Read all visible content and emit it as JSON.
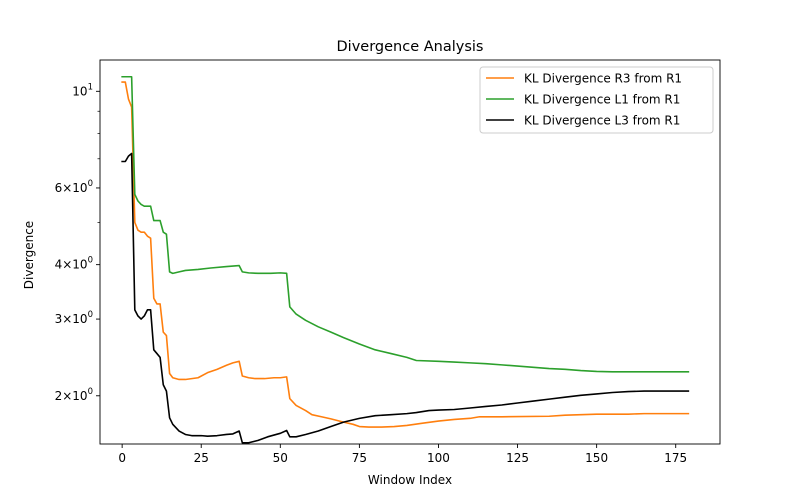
{
  "chart_data": {
    "type": "line",
    "title": "Divergence Analysis",
    "xlabel": "Window Index",
    "ylabel": "Divergence",
    "xlim": [
      -7,
      189
    ],
    "ylim": [
      1.55,
      11.8
    ],
    "yscale": "log",
    "x_ticks": [
      0,
      25,
      50,
      75,
      100,
      125,
      150,
      175
    ],
    "y_ticks": [
      {
        "value": 10,
        "label": "10^1"
      },
      {
        "value": 6,
        "label": "6x10^0"
      },
      {
        "value": 4,
        "label": "4x10^0"
      },
      {
        "value": 3,
        "label": "3x10^0"
      },
      {
        "value": 2,
        "label": "2x10^0"
      }
    ],
    "y_minor_ticks": [
      5,
      7,
      8,
      9
    ],
    "grid": false,
    "legend_position": "upper right",
    "series": [
      {
        "name": "KL Divergence R3 from R1",
        "color": "#ff7f0e",
        "points": [
          [
            0,
            10.5
          ],
          [
            1,
            10.5
          ],
          [
            2,
            9.6
          ],
          [
            3,
            9.2
          ],
          [
            4,
            5.0
          ],
          [
            5,
            4.8
          ],
          [
            6,
            4.75
          ],
          [
            7,
            4.75
          ],
          [
            8,
            4.65
          ],
          [
            9,
            4.6
          ],
          [
            10,
            3.35
          ],
          [
            11,
            3.25
          ],
          [
            12,
            3.25
          ],
          [
            13,
            2.8
          ],
          [
            14,
            2.75
          ],
          [
            15,
            2.25
          ],
          [
            16,
            2.2
          ],
          [
            18,
            2.18
          ],
          [
            20,
            2.18
          ],
          [
            22,
            2.19
          ],
          [
            24,
            2.2
          ],
          [
            27,
            2.26
          ],
          [
            30,
            2.3
          ],
          [
            33,
            2.35
          ],
          [
            35,
            2.38
          ],
          [
            37,
            2.4
          ],
          [
            38,
            2.22
          ],
          [
            40,
            2.2
          ],
          [
            42,
            2.19
          ],
          [
            45,
            2.19
          ],
          [
            48,
            2.2
          ],
          [
            50,
            2.2
          ],
          [
            52,
            2.21
          ],
          [
            53,
            1.97
          ],
          [
            55,
            1.9
          ],
          [
            58,
            1.85
          ],
          [
            60,
            1.81
          ],
          [
            63,
            1.79
          ],
          [
            66,
            1.77
          ],
          [
            70,
            1.74
          ],
          [
            73,
            1.72
          ],
          [
            75,
            1.7
          ],
          [
            78,
            1.695
          ],
          [
            82,
            1.695
          ],
          [
            86,
            1.7
          ],
          [
            90,
            1.71
          ],
          [
            95,
            1.73
          ],
          [
            100,
            1.75
          ],
          [
            105,
            1.765
          ],
          [
            110,
            1.775
          ],
          [
            113,
            1.79
          ],
          [
            120,
            1.79
          ],
          [
            135,
            1.795
          ],
          [
            140,
            1.805
          ],
          [
            150,
            1.815
          ],
          [
            160,
            1.815
          ],
          [
            165,
            1.82
          ],
          [
            179,
            1.82
          ]
        ]
      },
      {
        "name": "KL Divergence L1 from R1",
        "color": "#2ca02c",
        "points": [
          [
            0,
            10.8
          ],
          [
            3,
            10.8
          ],
          [
            4,
            5.8
          ],
          [
            5,
            5.6
          ],
          [
            6,
            5.5
          ],
          [
            7,
            5.45
          ],
          [
            9,
            5.45
          ],
          [
            10,
            5.05
          ],
          [
            12,
            5.05
          ],
          [
            13,
            4.75
          ],
          [
            14,
            4.7
          ],
          [
            15,
            3.85
          ],
          [
            16,
            3.82
          ],
          [
            18,
            3.85
          ],
          [
            20,
            3.88
          ],
          [
            24,
            3.9
          ],
          [
            28,
            3.93
          ],
          [
            33,
            3.96
          ],
          [
            37,
            3.98
          ],
          [
            38,
            3.85
          ],
          [
            40,
            3.83
          ],
          [
            43,
            3.82
          ],
          [
            47,
            3.82
          ],
          [
            50,
            3.83
          ],
          [
            52,
            3.82
          ],
          [
            53,
            3.2
          ],
          [
            55,
            3.08
          ],
          [
            58,
            2.98
          ],
          [
            62,
            2.88
          ],
          [
            66,
            2.8
          ],
          [
            70,
            2.72
          ],
          [
            75,
            2.63
          ],
          [
            80,
            2.55
          ],
          [
            85,
            2.5
          ],
          [
            90,
            2.45
          ],
          [
            93,
            2.41
          ],
          [
            100,
            2.4
          ],
          [
            105,
            2.39
          ],
          [
            110,
            2.38
          ],
          [
            115,
            2.37
          ],
          [
            120,
            2.355
          ],
          [
            125,
            2.34
          ],
          [
            130,
            2.325
          ],
          [
            135,
            2.31
          ],
          [
            140,
            2.3
          ],
          [
            145,
            2.285
          ],
          [
            150,
            2.275
          ],
          [
            155,
            2.27
          ],
          [
            165,
            2.27
          ],
          [
            179,
            2.27
          ]
        ]
      },
      {
        "name": "KL Divergence L3 from R1",
        "color": "#000000",
        "points": [
          [
            0,
            6.9
          ],
          [
            1,
            6.9
          ],
          [
            2,
            7.1
          ],
          [
            3,
            7.2
          ],
          [
            4,
            3.15
          ],
          [
            5,
            3.05
          ],
          [
            6,
            3.0
          ],
          [
            7,
            3.05
          ],
          [
            8,
            3.15
          ],
          [
            9,
            3.15
          ],
          [
            10,
            2.55
          ],
          [
            11,
            2.5
          ],
          [
            12,
            2.45
          ],
          [
            13,
            2.12
          ],
          [
            14,
            2.05
          ],
          [
            15,
            1.78
          ],
          [
            16,
            1.72
          ],
          [
            18,
            1.66
          ],
          [
            20,
            1.63
          ],
          [
            22,
            1.62
          ],
          [
            25,
            1.62
          ],
          [
            27,
            1.615
          ],
          [
            30,
            1.62
          ],
          [
            33,
            1.63
          ],
          [
            35,
            1.635
          ],
          [
            37,
            1.66
          ],
          [
            38,
            1.56
          ],
          [
            40,
            1.56
          ],
          [
            43,
            1.58
          ],
          [
            46,
            1.61
          ],
          [
            50,
            1.64
          ],
          [
            52,
            1.665
          ],
          [
            53,
            1.61
          ],
          [
            55,
            1.61
          ],
          [
            58,
            1.63
          ],
          [
            62,
            1.66
          ],
          [
            66,
            1.7
          ],
          [
            70,
            1.74
          ],
          [
            75,
            1.775
          ],
          [
            80,
            1.8
          ],
          [
            85,
            1.81
          ],
          [
            90,
            1.82
          ],
          [
            93,
            1.83
          ],
          [
            97,
            1.85
          ],
          [
            100,
            1.855
          ],
          [
            105,
            1.86
          ],
          [
            110,
            1.875
          ],
          [
            115,
            1.89
          ],
          [
            120,
            1.905
          ],
          [
            125,
            1.925
          ],
          [
            130,
            1.945
          ],
          [
            135,
            1.965
          ],
          [
            140,
            1.985
          ],
          [
            145,
            2.005
          ],
          [
            150,
            2.02
          ],
          [
            155,
            2.035
          ],
          [
            160,
            2.045
          ],
          [
            165,
            2.05
          ],
          [
            179,
            2.05
          ]
        ]
      }
    ]
  }
}
